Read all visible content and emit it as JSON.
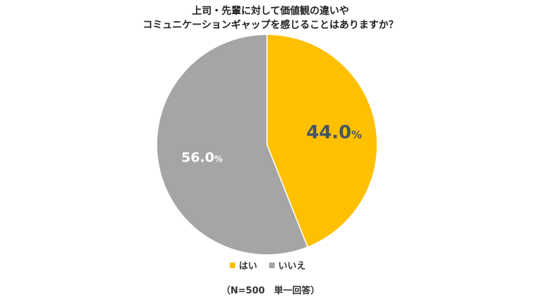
{
  "chart_data": {
    "type": "pie",
    "title_lines": [
      "上司・先輩に対して価値観の違いや",
      "コミュニケーションギャップを感じることはありますか？"
    ],
    "slices": [
      {
        "label": "はい",
        "value": 44.0,
        "display": "44.0",
        "unit": "%",
        "color": "#FFC000",
        "text_color": "#44546A"
      },
      {
        "label": "いいえ",
        "value": 56.0,
        "display": "56.0",
        "unit": "%",
        "color": "#A5A5A5",
        "text_color": "#FFFFFF"
      }
    ],
    "start": "12 o'clock",
    "direction": "clockwise",
    "legend_position": "bottom",
    "note": "（N=500　単一回答）"
  }
}
